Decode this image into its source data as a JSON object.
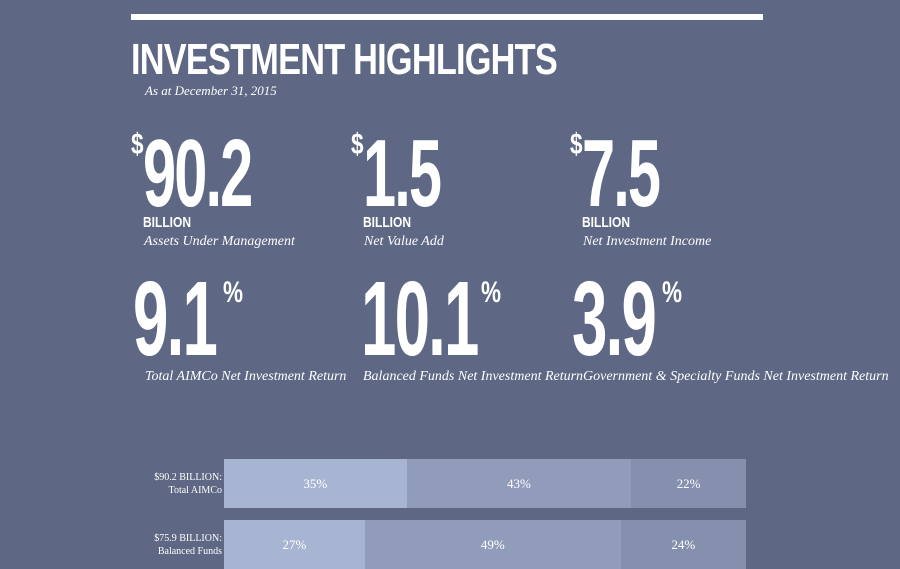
{
  "header": {
    "title": "INVESTMENT HIGHLIGHTS",
    "as_at": "As at December 31, 2015"
  },
  "currency_stats": [
    {
      "currency": "$",
      "value": "90.2",
      "unit": "BILLION",
      "label": "Assets Under Management"
    },
    {
      "currency": "$",
      "value": "1.5",
      "unit": "BILLION",
      "label": "Net Value Add"
    },
    {
      "currency": "$",
      "value": "7.5",
      "unit": "BILLION",
      "label": "Net Investment Income"
    }
  ],
  "percent_stats": [
    {
      "value": "9.1",
      "symbol": "%",
      "label": "Total AIMCo Net Investment Return"
    },
    {
      "value": "10.1",
      "symbol": "%",
      "label": "Balanced Funds Net Investment Return"
    },
    {
      "value": "3.9",
      "symbol": "%",
      "label": "Government & Specialty Funds Net Investment Return"
    }
  ],
  "allocation_bars": [
    {
      "label_line1": "$90.2 BILLION:",
      "label_line2": "Total AIMCo",
      "segments": [
        35,
        43,
        22
      ],
      "segment_labels": [
        "35%",
        "43%",
        "22%"
      ]
    },
    {
      "label_line1": "$75.9 BILLION:",
      "label_line2": "Balanced Funds",
      "segments": [
        27,
        49,
        24
      ],
      "segment_labels": [
        "27%",
        "49%",
        "24%"
      ]
    }
  ],
  "colors": {
    "background": "#5e6783",
    "segment_1": "#a7b5d2",
    "segment_2": "#919cbb",
    "segment_3": "#8590ae"
  }
}
